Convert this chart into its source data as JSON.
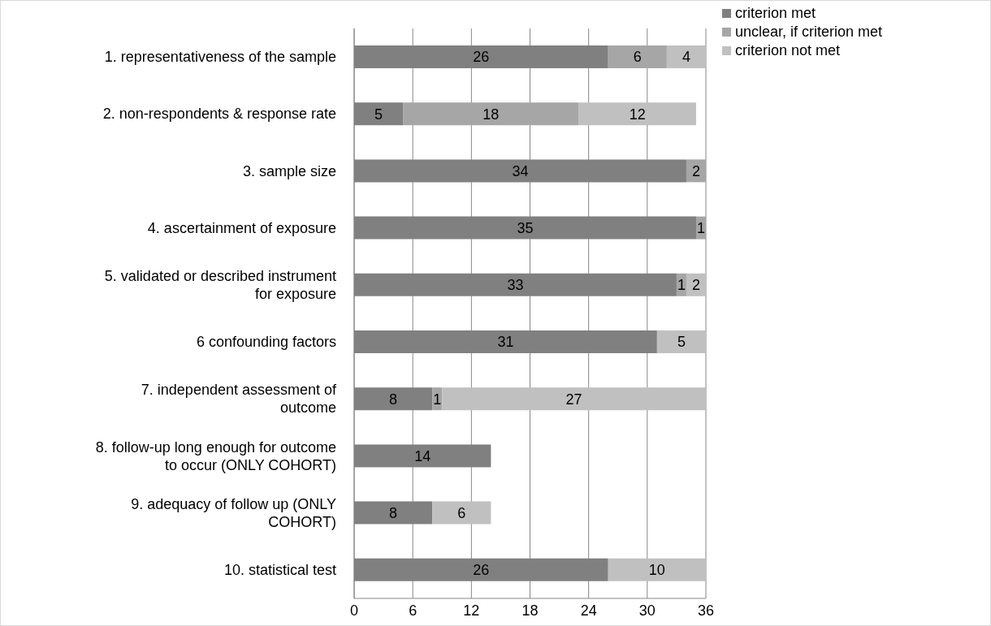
{
  "chart_data": {
    "type": "bar",
    "orientation": "horizontal",
    "stacked": true,
    "data_labels": true,
    "grid": "x",
    "legend": "top right",
    "categories": [
      "1. representativeness of the sample",
      "2. non-respondents & response rate",
      "3. sample size",
      "4. ascertainment of exposure",
      "5. validated or described instrument for exposure",
      "6 confounding factors",
      "7. independent assessment of outcome",
      "8. follow-up long enough for outcome to occur (ONLY COHORT)",
      "9. adequacy of follow up (ONLY COHORT)",
      "10. statistical test"
    ],
    "series": [
      {
        "name": "criterion met",
        "color": "#808080",
        "values": [
          26,
          5,
          34,
          35,
          33,
          31,
          8,
          14,
          8,
          26
        ]
      },
      {
        "name": "unclear, if criterion met",
        "color": "#a6a6a6",
        "values": [
          6,
          18,
          2,
          1,
          1,
          null,
          1,
          null,
          null,
          null
        ]
      },
      {
        "name": "criterion not met",
        "color": "#c0c0c0",
        "values": [
          4,
          12,
          null,
          null,
          2,
          5,
          27,
          null,
          6,
          10
        ]
      }
    ],
    "xlim": [
      0,
      36
    ],
    "xticks": [
      0,
      6,
      12,
      18,
      24,
      30,
      36
    ]
  }
}
